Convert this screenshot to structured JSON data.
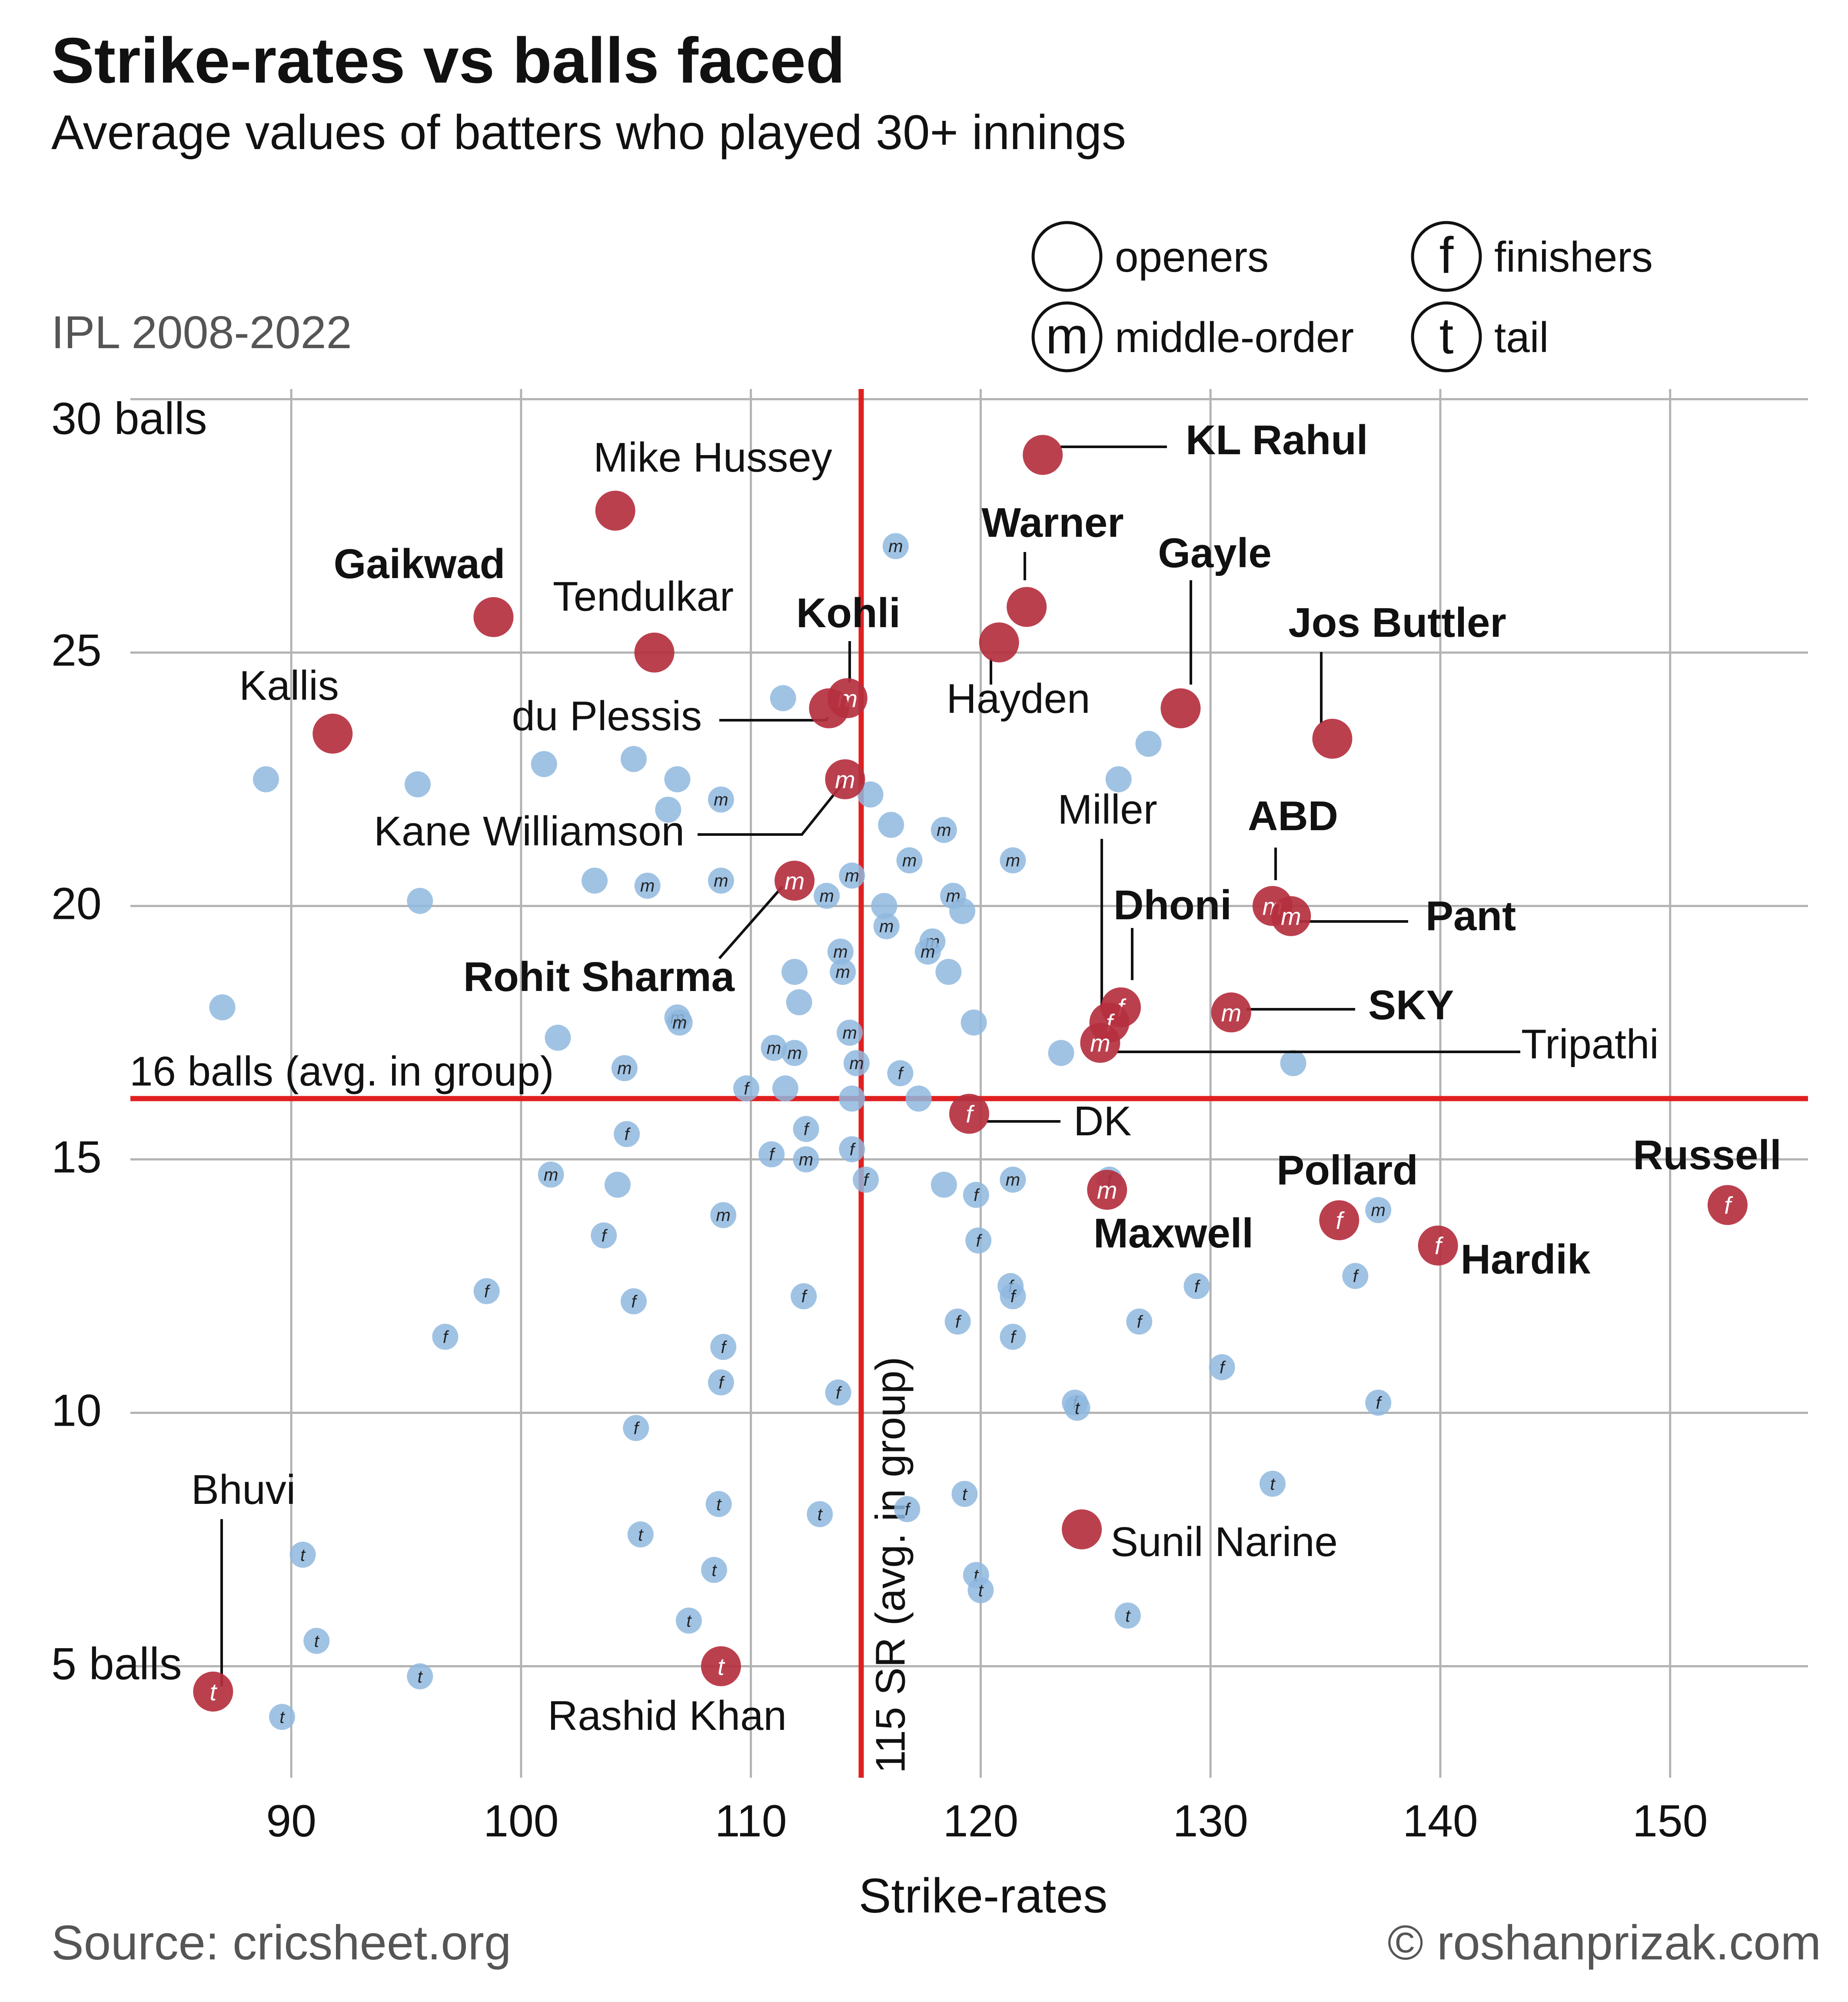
{
  "title": "Strike-rates vs balls faced",
  "subtitle": "Average values of batters who played 30+ innings",
  "period": "IPL 2008-2022",
  "source": "Source: cricsheet.org",
  "credit": "© roshanprizak.com",
  "colors": {
    "highlight": "#b5303f",
    "other": "#8fb8df",
    "refline": "#e02020",
    "grid": "#b3b3b3"
  },
  "chart_data": {
    "type": "scatter",
    "xlabel": "Strike-rates",
    "ylabel": "",
    "xlim": [
      83,
      156
    ],
    "ylim": [
      2.8,
      30.2
    ],
    "x_ticks": [
      90,
      100,
      110,
      120,
      130,
      140,
      150
    ],
    "y_ticks": [
      {
        "value": 5,
        "label": "5 balls"
      },
      {
        "value": 10,
        "label": "10"
      },
      {
        "value": 15,
        "label": "15"
      },
      {
        "value": 20,
        "label": "20"
      },
      {
        "value": 25,
        "label": "25"
      },
      {
        "value": 30,
        "label": "30 balls"
      }
    ],
    "grid": true,
    "legend": {
      "position": "top-right",
      "entries": [
        {
          "symbol": "",
          "label": "openers"
        },
        {
          "symbol": "f",
          "label": "finishers"
        },
        {
          "symbol": "m",
          "label": "middle-order"
        },
        {
          "symbol": "t",
          "label": "tail"
        }
      ]
    },
    "reference_lines": [
      {
        "axis": "y",
        "value": 16.2,
        "label": "16 balls (avg. in group)"
      },
      {
        "axis": "x",
        "value": 114.8,
        "label": "115 SR (avg. in group)"
      }
    ],
    "highlighted": [
      {
        "name": "KL Rahul",
        "role": "o",
        "x": 122.7,
        "y": 28.9,
        "bold": true
      },
      {
        "name": "Mike Hussey",
        "role": "o",
        "x": 104.1,
        "y": 27.8,
        "bold": false
      },
      {
        "name": "Warner",
        "role": "o",
        "x": 122.0,
        "y": 25.9,
        "bold": true
      },
      {
        "name": "Hayden",
        "role": "o",
        "x": 120.8,
        "y": 25.2,
        "bold": false
      },
      {
        "name": "Gaikwad",
        "role": "o",
        "x": 98.8,
        "y": 25.7,
        "bold": true
      },
      {
        "name": "Tendulkar",
        "role": "o",
        "x": 105.8,
        "y": 25.0,
        "bold": false
      },
      {
        "name": "Kohli",
        "role": "m",
        "x": 114.2,
        "y": 24.1,
        "bold": true
      },
      {
        "name": "du Plessis",
        "role": "o",
        "x": 113.4,
        "y": 23.9,
        "bold": false
      },
      {
        "name": "Gayle",
        "role": "o",
        "x": 128.7,
        "y": 23.9,
        "bold": true
      },
      {
        "name": "Kallis",
        "role": "o",
        "x": 91.8,
        "y": 23.4,
        "bold": false
      },
      {
        "name": "Jos Buttler",
        "role": "o",
        "x": 135.3,
        "y": 23.3,
        "bold": true
      },
      {
        "name": "Kane Williamson",
        "role": "m",
        "x": 114.1,
        "y": 22.5,
        "bold": false
      },
      {
        "name": "Rohit Sharma",
        "role": "m",
        "x": 111.9,
        "y": 20.5,
        "bold": true
      },
      {
        "name": "ABD",
        "role": "m",
        "x": 132.7,
        "y": 20.0,
        "bold": true
      },
      {
        "name": "Pant",
        "role": "m",
        "x": 133.5,
        "y": 19.8,
        "bold": true
      },
      {
        "name": "Dhoni",
        "role": "f",
        "x": 126.1,
        "y": 18.0,
        "bold": true
      },
      {
        "name": "Miller",
        "role": "f",
        "x": 125.6,
        "y": 17.7,
        "bold": false
      },
      {
        "name": "SKY",
        "role": "m",
        "x": 130.9,
        "y": 17.9,
        "bold": true
      },
      {
        "name": "Tripathi",
        "role": "m",
        "x": 125.2,
        "y": 17.3,
        "bold": false
      },
      {
        "name": "DK",
        "role": "f",
        "x": 119.5,
        "y": 15.9,
        "bold": false
      },
      {
        "name": "Maxwell",
        "role": "m",
        "x": 125.5,
        "y": 14.4,
        "bold": true
      },
      {
        "name": "Pollard",
        "role": "f",
        "x": 135.6,
        "y": 13.8,
        "bold": true
      },
      {
        "name": "Hardik",
        "role": "f",
        "x": 139.9,
        "y": 13.3,
        "bold": true
      },
      {
        "name": "Russell",
        "role": "f",
        "x": 152.5,
        "y": 14.1,
        "bold": true
      },
      {
        "name": "Sunil Narine",
        "role": "o",
        "x": 124.4,
        "y": 7.7,
        "bold": false
      },
      {
        "name": "Bhuvi",
        "role": "t",
        "x": 86.6,
        "y": 4.5,
        "bold": false
      },
      {
        "name": "Rashid Khan",
        "role": "t",
        "x": 108.7,
        "y": 5.0,
        "bold": false
      }
    ],
    "others": [
      {
        "role": "m",
        "x": 116.3,
        "y": 27.1
      },
      {
        "role": "o",
        "x": 111.4,
        "y": 24.1
      },
      {
        "role": "o",
        "x": 127.3,
        "y": 23.2
      },
      {
        "role": "o",
        "x": 88.9,
        "y": 22.5
      },
      {
        "role": "o",
        "x": 95.5,
        "y": 22.4
      },
      {
        "role": "o",
        "x": 101.0,
        "y": 22.8
      },
      {
        "role": "o",
        "x": 104.9,
        "y": 22.9
      },
      {
        "role": "o",
        "x": 106.8,
        "y": 22.5
      },
      {
        "role": "m",
        "x": 108.7,
        "y": 22.1
      },
      {
        "role": "o",
        "x": 106.4,
        "y": 21.9
      },
      {
        "role": "o",
        "x": 115.2,
        "y": 22.2
      },
      {
        "role": "o",
        "x": 126.0,
        "y": 22.5
      },
      {
        "role": "o",
        "x": 116.1,
        "y": 21.6
      },
      {
        "role": "m",
        "x": 118.4,
        "y": 21.5
      },
      {
        "role": "m",
        "x": 121.4,
        "y": 20.9
      },
      {
        "role": "m",
        "x": 116.9,
        "y": 20.9
      },
      {
        "role": "o",
        "x": 95.6,
        "y": 20.1
      },
      {
        "role": "o",
        "x": 103.2,
        "y": 20.5
      },
      {
        "role": "m",
        "x": 105.5,
        "y": 20.4
      },
      {
        "role": "m",
        "x": 108.7,
        "y": 20.5
      },
      {
        "role": "m",
        "x": 113.3,
        "y": 20.2
      },
      {
        "role": "m",
        "x": 114.4,
        "y": 20.6
      },
      {
        "role": "o",
        "x": 115.8,
        "y": 20.0
      },
      {
        "role": "m",
        "x": 115.9,
        "y": 19.6
      },
      {
        "role": "m",
        "x": 118.8,
        "y": 20.2
      },
      {
        "role": "o",
        "x": 119.2,
        "y": 19.9
      },
      {
        "role": "m",
        "x": 117.9,
        "y": 19.3
      },
      {
        "role": "m",
        "x": 117.7,
        "y": 19.1
      },
      {
        "role": "o",
        "x": 118.6,
        "y": 18.7
      },
      {
        "role": "o",
        "x": 111.9,
        "y": 18.7
      },
      {
        "role": "m",
        "x": 113.9,
        "y": 19.1
      },
      {
        "role": "m",
        "x": 114.0,
        "y": 18.7
      },
      {
        "role": "o",
        "x": 112.1,
        "y": 18.1
      },
      {
        "role": "o",
        "x": 87.0,
        "y": 18.0
      },
      {
        "role": "m",
        "x": 106.8,
        "y": 17.8
      },
      {
        "role": "m",
        "x": 106.9,
        "y": 17.7
      },
      {
        "role": "o",
        "x": 119.7,
        "y": 17.7
      },
      {
        "role": "o",
        "x": 101.6,
        "y": 17.4
      },
      {
        "role": "m",
        "x": 114.3,
        "y": 17.5
      },
      {
        "role": "m",
        "x": 111.0,
        "y": 17.2
      },
      {
        "role": "m",
        "x": 111.9,
        "y": 17.1
      },
      {
        "role": "o",
        "x": 123.5,
        "y": 17.1
      },
      {
        "role": "o",
        "x": 133.6,
        "y": 16.9
      },
      {
        "role": "m",
        "x": 104.5,
        "y": 16.8
      },
      {
        "role": "m",
        "x": 114.6,
        "y": 16.9
      },
      {
        "role": "f",
        "x": 116.5,
        "y": 16.7
      },
      {
        "role": "f",
        "x": 109.8,
        "y": 16.4
      },
      {
        "role": "o",
        "x": 111.5,
        "y": 16.4
      },
      {
        "role": "o",
        "x": 114.4,
        "y": 16.2
      },
      {
        "role": "o",
        "x": 117.3,
        "y": 16.2
      },
      {
        "role": "f",
        "x": 104.6,
        "y": 15.5
      },
      {
        "role": "f",
        "x": 112.4,
        "y": 15.6
      },
      {
        "role": "f",
        "x": 114.4,
        "y": 15.2
      },
      {
        "role": "f",
        "x": 110.9,
        "y": 15.1
      },
      {
        "role": "m",
        "x": 112.4,
        "y": 15.0
      },
      {
        "role": "m",
        "x": 101.3,
        "y": 14.7
      },
      {
        "role": "o",
        "x": 104.2,
        "y": 14.5
      },
      {
        "role": "f",
        "x": 115.0,
        "y": 14.6
      },
      {
        "role": "o",
        "x": 118.4,
        "y": 14.5
      },
      {
        "role": "f",
        "x": 119.8,
        "y": 14.3
      },
      {
        "role": "m",
        "x": 121.4,
        "y": 14.6
      },
      {
        "role": "f",
        "x": 125.6,
        "y": 14.6
      },
      {
        "role": "m",
        "x": 137.3,
        "y": 14.0
      },
      {
        "role": "m",
        "x": 108.8,
        "y": 13.9
      },
      {
        "role": "f",
        "x": 103.6,
        "y": 13.5
      },
      {
        "role": "f",
        "x": 119.9,
        "y": 13.4
      },
      {
        "role": "f",
        "x": 136.3,
        "y": 12.7
      },
      {
        "role": "f",
        "x": 98.5,
        "y": 12.4
      },
      {
        "role": "f",
        "x": 104.9,
        "y": 12.2
      },
      {
        "role": "f",
        "x": 112.3,
        "y": 12.3
      },
      {
        "role": "f",
        "x": 121.3,
        "y": 12.5
      },
      {
        "role": "f",
        "x": 121.4,
        "y": 12.3
      },
      {
        "role": "f",
        "x": 129.4,
        "y": 12.5
      },
      {
        "role": "f",
        "x": 96.7,
        "y": 11.5
      },
      {
        "role": "f",
        "x": 119.0,
        "y": 11.8
      },
      {
        "role": "f",
        "x": 121.4,
        "y": 11.5
      },
      {
        "role": "f",
        "x": 126.9,
        "y": 11.8
      },
      {
        "role": "f",
        "x": 108.8,
        "y": 11.3
      },
      {
        "role": "f",
        "x": 130.5,
        "y": 10.9
      },
      {
        "role": "f",
        "x": 108.7,
        "y": 10.6
      },
      {
        "role": "f",
        "x": 113.8,
        "y": 10.4
      },
      {
        "role": "f",
        "x": 124.1,
        "y": 10.2
      },
      {
        "role": "t",
        "x": 124.2,
        "y": 10.1
      },
      {
        "role": "f",
        "x": 137.3,
        "y": 10.2
      },
      {
        "role": "f",
        "x": 105.0,
        "y": 9.7
      },
      {
        "role": "t",
        "x": 132.7,
        "y": 8.6
      },
      {
        "role": "t",
        "x": 119.3,
        "y": 8.4
      },
      {
        "role": "t",
        "x": 108.6,
        "y": 8.2
      },
      {
        "role": "t",
        "x": 113.0,
        "y": 8.0
      },
      {
        "role": "f",
        "x": 116.8,
        "y": 8.1
      },
      {
        "role": "t",
        "x": 105.2,
        "y": 7.6
      },
      {
        "role": "t",
        "x": 90.5,
        "y": 7.2
      },
      {
        "role": "t",
        "x": 108.4,
        "y": 6.9
      },
      {
        "role": "t",
        "x": 119.8,
        "y": 6.8
      },
      {
        "role": "t",
        "x": 120.0,
        "y": 6.5
      },
      {
        "role": "t",
        "x": 126.4,
        "y": 6.0
      },
      {
        "role": "t",
        "x": 107.3,
        "y": 5.9
      },
      {
        "role": "t",
        "x": 91.1,
        "y": 5.5
      },
      {
        "role": "t",
        "x": 95.6,
        "y": 4.8
      },
      {
        "role": "t",
        "x": 89.6,
        "y": 4.0
      }
    ]
  }
}
